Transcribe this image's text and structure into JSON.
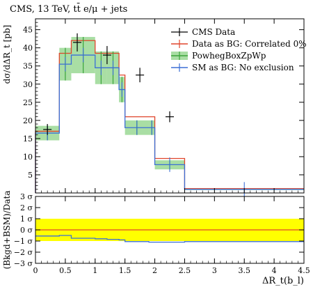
{
  "chart_data": [
    {
      "type": "line",
      "title": "CMS, 13 TeV, tt̄ e/μ + jets",
      "ylabel": "dσ/dΔR_t [pb]",
      "xlim": [
        0,
        4.5
      ],
      "ylim": [
        0,
        48
      ],
      "x_ticks": [
        "0",
        "0.5",
        "1",
        "1.5",
        "2",
        "2.5",
        "3",
        "3.5",
        "4",
        "4.5"
      ],
      "y_ticks": [
        5,
        10,
        15,
        20,
        25,
        30,
        35,
        40,
        45
      ],
      "bin_edges": [
        0,
        0.4,
        0.6,
        1.0,
        1.2,
        1.4,
        1.5,
        1.9,
        2.0,
        2.5,
        4.5
      ],
      "legend_placement": "top-right",
      "series": [
        {
          "name": "CMS Data",
          "style": "points",
          "x": [
            0.2,
            0.7,
            1.2,
            1.75,
            2.25
          ],
          "y": [
            17.5,
            41.5,
            38.0,
            32.5,
            21.0
          ],
          "yerr": [
            1.5,
            2.5,
            2.5,
            2.0,
            1.5
          ],
          "color": "#000000"
        },
        {
          "name": "Data as BG: Correlated 0%",
          "style": "step",
          "values": [
            17.0,
            38.5,
            42.0,
            38.5,
            38.5,
            32.5,
            21.0,
            21.0,
            9.5,
            1.2
          ],
          "color": "#e0452b"
        },
        {
          "name": "PowhegBoxZpWp",
          "style": "band",
          "values": [
            16.5,
            35.5,
            38.0,
            34.5,
            34.5,
            28.5,
            18.0,
            18.0,
            7.8,
            1.0
          ],
          "band_low": [
            14.5,
            31.0,
            33.0,
            30.0,
            30.0,
            25.0,
            16.0,
            16.0,
            6.5,
            0.8
          ],
          "band_high": [
            18.5,
            40.0,
            43.0,
            39.0,
            39.0,
            32.0,
            20.0,
            20.0,
            9.0,
            1.2
          ],
          "band_color": "#a9dea4",
          "color": "#3aa33a"
        },
        {
          "name": "SM as BG: No exclusion",
          "style": "step",
          "values": [
            16.5,
            35.5,
            38.0,
            34.5,
            34.5,
            28.5,
            18.0,
            18.0,
            7.8,
            1.0
          ],
          "color": "#3b6fd6"
        }
      ]
    },
    {
      "type": "line",
      "ylabel": "(Bkgd+BSM)/Data",
      "xlabel": "ΔR_t(b_l)",
      "xlim": [
        0,
        4.5
      ],
      "ylim": [
        -3,
        3
      ],
      "x_ticks": [
        "0",
        "0.5",
        "1",
        "1.5",
        "2",
        "2.5",
        "3",
        "3.5",
        "4",
        "4.5"
      ],
      "y_ticks": [
        "3 σ",
        "2 σ",
        "1 σ",
        "0 σ",
        "−1 σ",
        "−2 σ",
        "−3 σ"
      ],
      "y_tick_values": [
        3,
        2,
        1,
        0,
        -1,
        -2,
        -3
      ],
      "band": {
        "low": -1,
        "high": 1,
        "color": "#ffff00"
      },
      "series": [
        {
          "name": "Data as BG: Correlated 0%",
          "style": "step",
          "values": [
            0,
            0,
            0,
            0,
            0,
            0,
            0,
            0,
            0,
            0
          ],
          "color": "#e0452b"
        },
        {
          "name": "SM as BG: No exclusion",
          "style": "step",
          "values": [
            -0.55,
            -0.5,
            -0.75,
            -0.8,
            -0.85,
            -0.9,
            -1.05,
            -1.1,
            -1.1,
            -1.05
          ],
          "color": "#3b6fd6"
        }
      ]
    }
  ]
}
